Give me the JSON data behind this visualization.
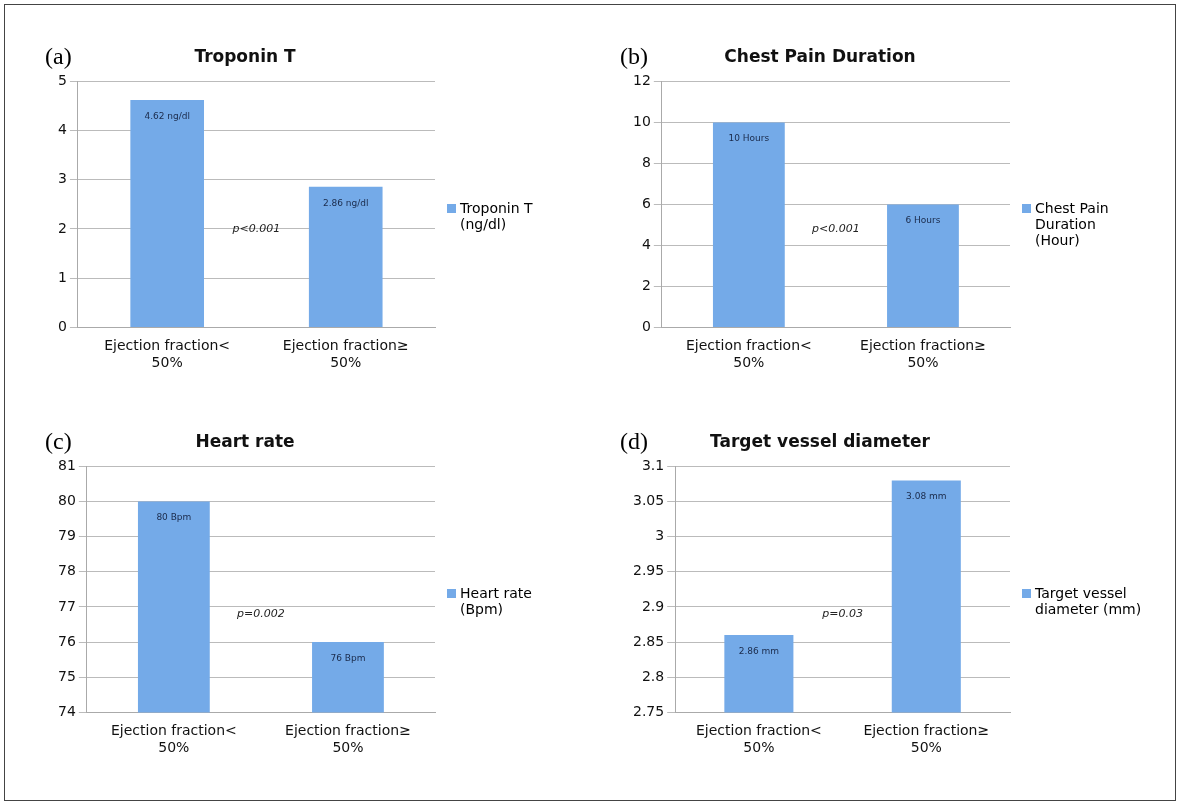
{
  "chart_data": [
    {
      "type": "bar",
      "title": "Troponin T",
      "categories": [
        "Ejection fraction< 50%",
        "Ejection fraction≥ 50%"
      ],
      "series": [
        {
          "name": "Troponin T (ng/dl)",
          "color": "#74aae8",
          "values": [
            4.62,
            2.86
          ],
          "value_labels": [
            "4.62 ng/dl",
            "2.86 ng/dl"
          ]
        }
      ],
      "ylim": [
        0,
        5
      ],
      "yticks": [
        0,
        1,
        2,
        3,
        4,
        5
      ],
      "grid": "y",
      "legend": "right",
      "annotations": [
        "(a)",
        "p<0.001"
      ]
    },
    {
      "type": "bar",
      "title": "Chest Pain Duration",
      "categories": [
        "Ejection fraction< 50%",
        "Ejection fraction≥ 50%"
      ],
      "series": [
        {
          "name": "Chest Pain Duration (Hour)",
          "color": "#74aae8",
          "values": [
            10,
            6
          ],
          "value_labels": [
            "10 Hours",
            "6 Hours"
          ]
        }
      ],
      "ylim": [
        0,
        12
      ],
      "yticks": [
        0,
        2,
        4,
        6,
        8,
        10,
        12
      ],
      "grid": "y",
      "legend": "right",
      "annotations": [
        "(b)",
        "p<0.001"
      ]
    },
    {
      "type": "bar",
      "title": "Heart rate",
      "categories": [
        "Ejection fraction< 50%",
        "Ejection fraction≥ 50%"
      ],
      "series": [
        {
          "name": "Heart rate (Bpm)",
          "color": "#74aae8",
          "values": [
            80,
            76
          ],
          "value_labels": [
            "80 Bpm",
            "76 Bpm"
          ]
        }
      ],
      "ylim": [
        74,
        81
      ],
      "yticks": [
        74,
        75,
        76,
        77,
        78,
        79,
        80,
        81
      ],
      "grid": "y",
      "legend": "right",
      "annotations": [
        "(c)",
        "p=0.002"
      ]
    },
    {
      "type": "bar",
      "title": "Target vessel diameter",
      "categories": [
        "Ejection fraction< 50%",
        "Ejection fraction≥ 50%"
      ],
      "series": [
        {
          "name": "Target vessel diameter (mm)",
          "color": "#74aae8",
          "values": [
            2.86,
            3.08
          ],
          "value_labels": [
            "2.86 mm",
            "3.08 mm"
          ]
        }
      ],
      "ylim": [
        2.75,
        3.1
      ],
      "yticks": [
        2.75,
        2.8,
        2.85,
        2.9,
        2.95,
        3,
        3.05,
        3.1
      ],
      "grid": "y",
      "legend": "right",
      "annotations": [
        "(d)",
        "p=0.03"
      ]
    }
  ]
}
